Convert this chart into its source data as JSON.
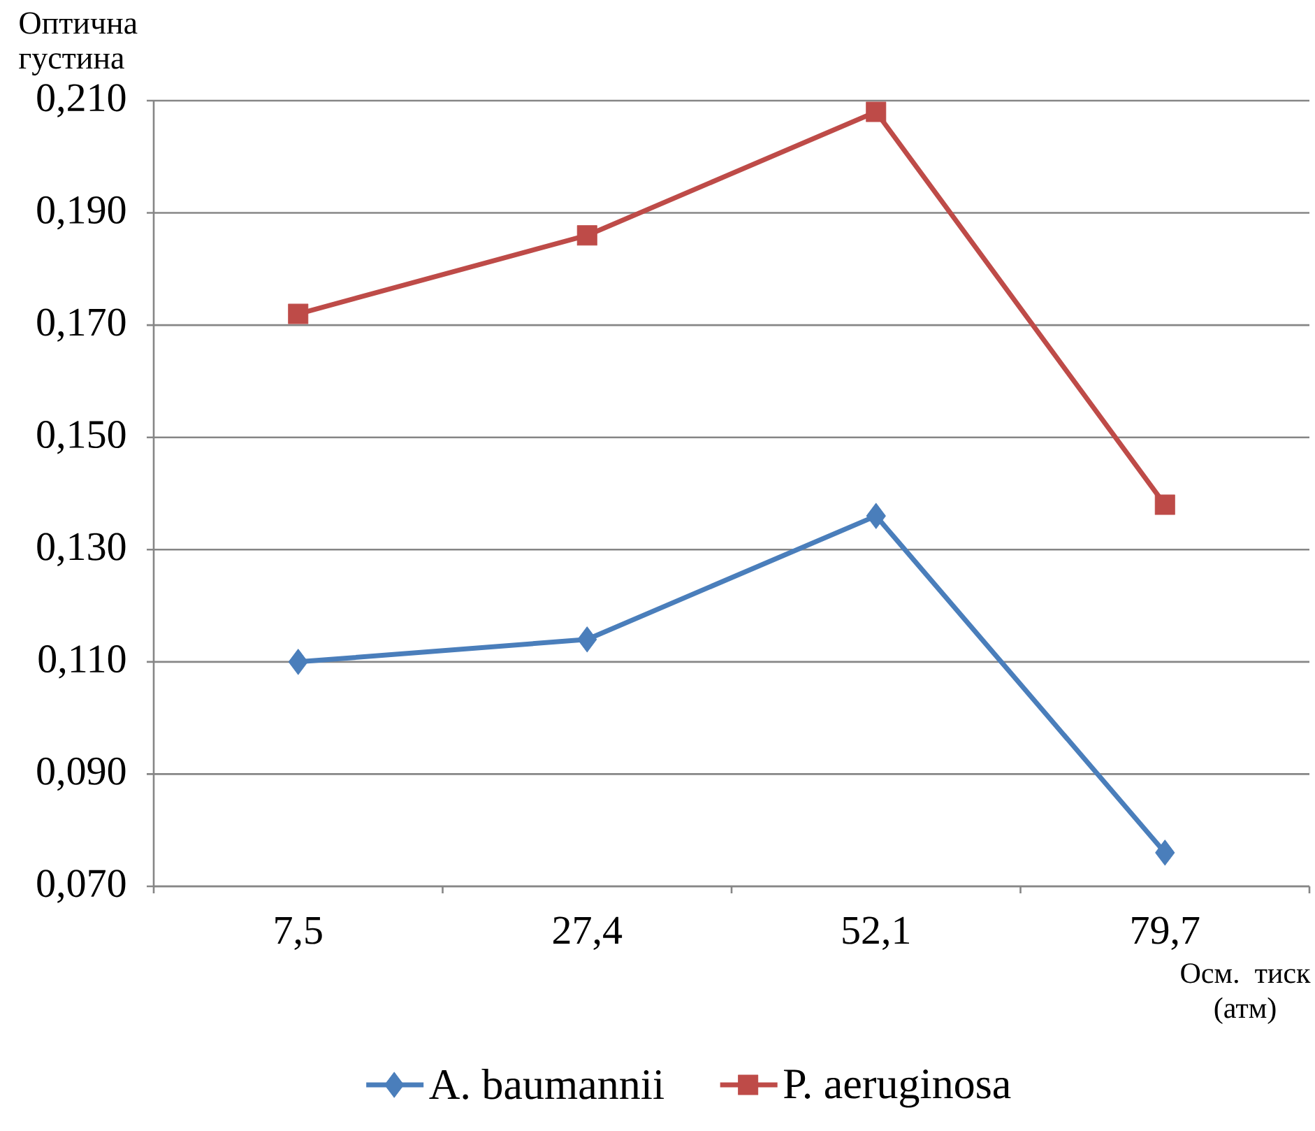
{
  "chart_data": {
    "type": "line",
    "xlabel": "Осм. тиск (атм)",
    "ylabel": "Оптична густина",
    "categories": [
      "7,5",
      "27,4",
      "52,1",
      "79,7"
    ],
    "series": [
      {
        "name": "A. baumannii",
        "color": "#4a7ebb",
        "marker": "diamond",
        "values": [
          0.11,
          0.114,
          0.136,
          0.076
        ]
      },
      {
        "name": "P. aeruginosa",
        "color": "#be4b48",
        "marker": "square",
        "values": [
          0.172,
          0.186,
          0.208,
          0.138
        ]
      }
    ],
    "ylim": [
      0.07,
      0.21
    ],
    "yticks": [
      {
        "value": 0.07,
        "label": "0,070"
      },
      {
        "value": 0.09,
        "label": "0,090"
      },
      {
        "value": 0.11,
        "label": "0,110"
      },
      {
        "value": 0.13,
        "label": "0,130"
      },
      {
        "value": 0.15,
        "label": "0,150"
      },
      {
        "value": 0.17,
        "label": "0,170"
      },
      {
        "value": 0.19,
        "label": "0,190"
      },
      {
        "value": 0.21,
        "label": "0,210"
      }
    ],
    "grid": "y",
    "legend": "bottom",
    "line_style": "solid"
  }
}
